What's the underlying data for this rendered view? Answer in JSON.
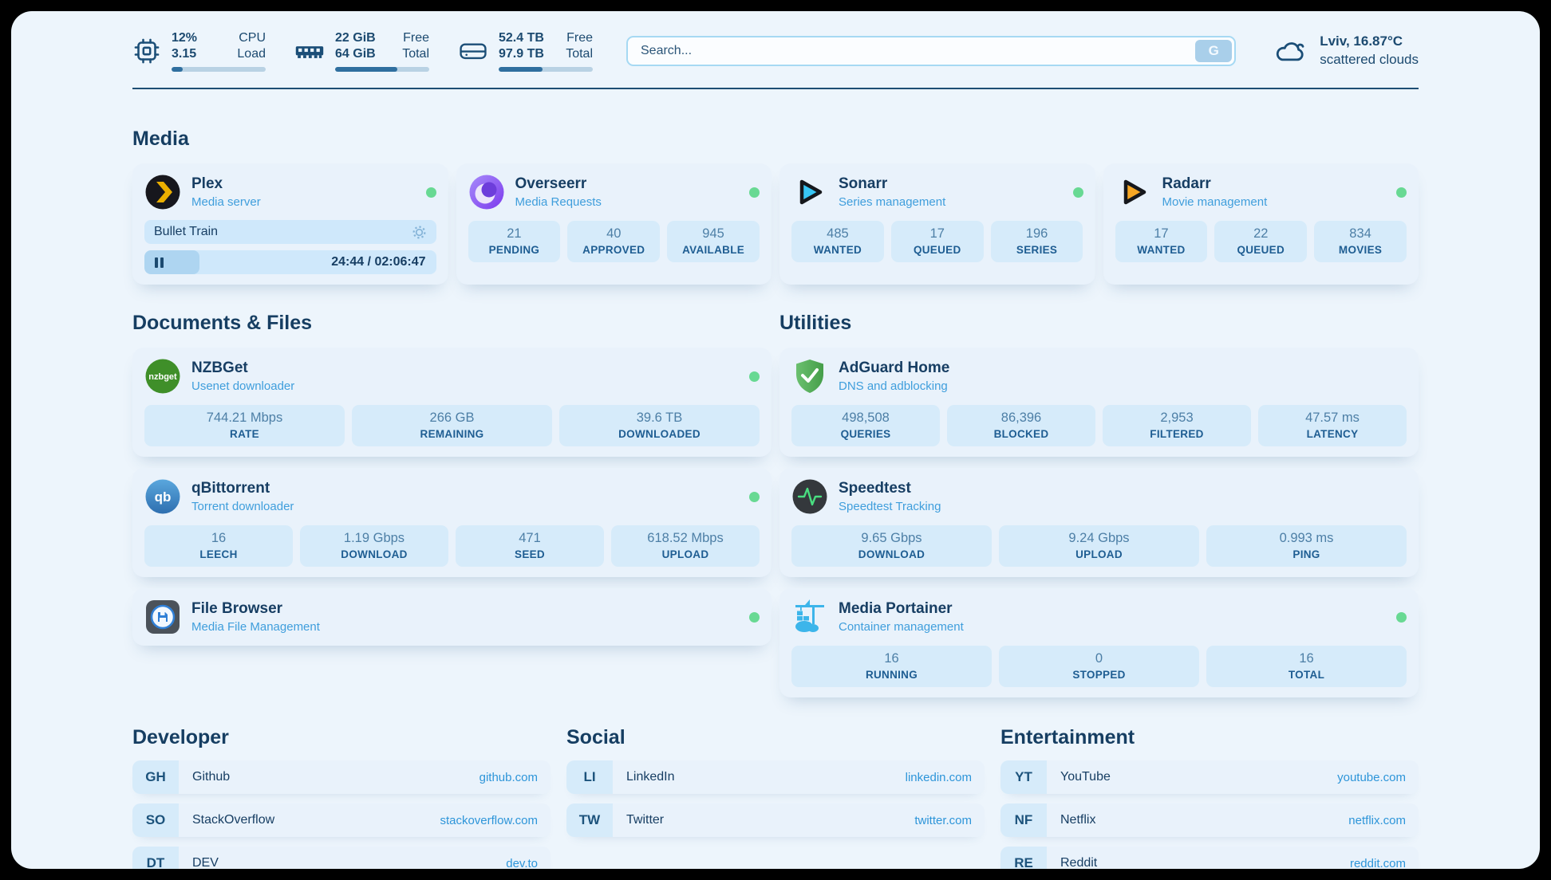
{
  "header": {
    "system_stats": [
      {
        "icon": "cpu-chip-icon",
        "value_top": "12%",
        "value_bottom": "3.15",
        "label_top": "CPU",
        "label_bottom": "Load",
        "progress_pct": 12
      },
      {
        "icon": "memory-icon",
        "value_top": "22 GiB",
        "value_bottom": "64 GiB",
        "label_top": "Free",
        "label_bottom": "Total",
        "progress_pct": 66
      },
      {
        "icon": "storage-icon",
        "value_top": "52.4 TB",
        "value_bottom": "97.9 TB",
        "label_top": "Free",
        "label_bottom": "Total",
        "progress_pct": 47
      }
    ],
    "search": {
      "placeholder": "Search...",
      "provider_button": "G"
    },
    "weather": {
      "location": "Lviv, 16.87°C",
      "condition": "scattered clouds"
    }
  },
  "sections": {
    "media": {
      "title": "Media",
      "apps": [
        {
          "name": "Plex",
          "description": "Media server",
          "online": true,
          "now_playing": {
            "title": "Bullet Train",
            "time": "24:44 / 02:06:47",
            "progress_pct": 19
          }
        },
        {
          "name": "Overseerr",
          "description": "Media Requests",
          "online": true,
          "stats": [
            {
              "value": "21",
              "label": "PENDING"
            },
            {
              "value": "40",
              "label": "APPROVED"
            },
            {
              "value": "945",
              "label": "AVAILABLE"
            }
          ]
        },
        {
          "name": "Sonarr",
          "description": "Series management",
          "online": true,
          "stats": [
            {
              "value": "485",
              "label": "WANTED"
            },
            {
              "value": "17",
              "label": "QUEUED"
            },
            {
              "value": "196",
              "label": "SERIES"
            }
          ]
        },
        {
          "name": "Radarr",
          "description": "Movie management",
          "online": true,
          "stats": [
            {
              "value": "17",
              "label": "WANTED"
            },
            {
              "value": "22",
              "label": "QUEUED"
            },
            {
              "value": "834",
              "label": "MOVIES"
            }
          ]
        }
      ]
    },
    "documents": {
      "title": "Documents & Files",
      "apps": [
        {
          "name": "NZBGet",
          "description": "Usenet downloader",
          "online": true,
          "stats": [
            {
              "value": "744.21 Mbps",
              "label": "RATE"
            },
            {
              "value": "266 GB",
              "label": "REMAINING"
            },
            {
              "value": "39.6 TB",
              "label": "DOWNLOADED"
            }
          ]
        },
        {
          "name": "qBittorrent",
          "description": "Torrent downloader",
          "online": true,
          "stats": [
            {
              "value": "16",
              "label": "LEECH"
            },
            {
              "value": "1.19 Gbps",
              "label": "DOWNLOAD"
            },
            {
              "value": "471",
              "label": "SEED"
            },
            {
              "value": "618.52 Mbps",
              "label": "UPLOAD"
            }
          ]
        },
        {
          "name": "File Browser",
          "description": "Media File Management",
          "online": true,
          "stats": []
        }
      ]
    },
    "utilities": {
      "title": "Utilities",
      "apps": [
        {
          "name": "AdGuard Home",
          "description": "DNS and adblocking",
          "online": false,
          "stats": [
            {
              "value": "498,508",
              "label": "QUERIES"
            },
            {
              "value": "86,396",
              "label": "BLOCKED"
            },
            {
              "value": "2,953",
              "label": "FILTERED"
            },
            {
              "value": "47.57 ms",
              "label": "LATENCY"
            }
          ]
        },
        {
          "name": "Speedtest",
          "description": "Speedtest Tracking",
          "online": false,
          "stats": [
            {
              "value": "9.65 Gbps",
              "label": "DOWNLOAD"
            },
            {
              "value": "9.24 Gbps",
              "label": "UPLOAD"
            },
            {
              "value": "0.993 ms",
              "label": "PING"
            }
          ]
        },
        {
          "name": "Media Portainer",
          "description": "Container management",
          "online": true,
          "stats": [
            {
              "value": "16",
              "label": "RUNNING"
            },
            {
              "value": "0",
              "label": "STOPPED"
            },
            {
              "value": "16",
              "label": "TOTAL"
            }
          ]
        }
      ]
    },
    "bookmarks": [
      {
        "title": "Developer",
        "links": [
          {
            "abbr": "GH",
            "name": "Github",
            "url": "github.com"
          },
          {
            "abbr": "SO",
            "name": "StackOverflow",
            "url": "stackoverflow.com"
          },
          {
            "abbr": "DT",
            "name": "DEV",
            "url": "dev.to"
          }
        ]
      },
      {
        "title": "Social",
        "links": [
          {
            "abbr": "LI",
            "name": "LinkedIn",
            "url": "linkedin.com"
          },
          {
            "abbr": "TW",
            "name": "Twitter",
            "url": "twitter.com"
          }
        ]
      },
      {
        "title": "Entertainment",
        "links": [
          {
            "abbr": "YT",
            "name": "YouTube",
            "url": "youtube.com"
          },
          {
            "abbr": "NF",
            "name": "Netflix",
            "url": "netflix.com"
          },
          {
            "abbr": "RE",
            "name": "Reddit",
            "url": "reddit.com"
          }
        ]
      }
    ]
  },
  "colors": {
    "accent_blue": "#3f9edc",
    "status_online": "#68d993",
    "navy_text": "#173e63",
    "link_blue": "#2d95d9"
  }
}
